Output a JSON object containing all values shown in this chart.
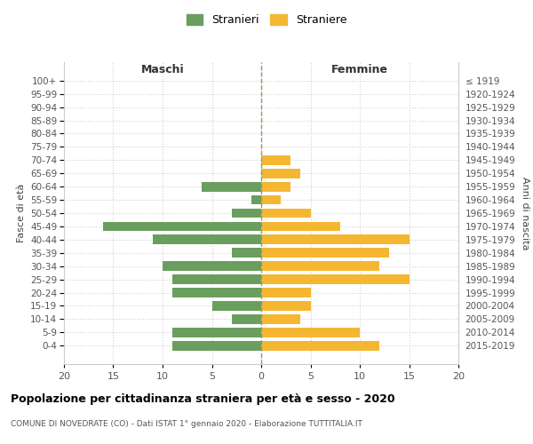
{
  "age_groups": [
    "100+",
    "95-99",
    "90-94",
    "85-89",
    "80-84",
    "75-79",
    "70-74",
    "65-69",
    "60-64",
    "55-59",
    "50-54",
    "45-49",
    "40-44",
    "35-39",
    "30-34",
    "25-29",
    "20-24",
    "15-19",
    "10-14",
    "5-9",
    "0-4"
  ],
  "birth_years": [
    "≤ 1919",
    "1920-1924",
    "1925-1929",
    "1930-1934",
    "1935-1939",
    "1940-1944",
    "1945-1949",
    "1950-1954",
    "1955-1959",
    "1960-1964",
    "1965-1969",
    "1970-1974",
    "1975-1979",
    "1980-1984",
    "1985-1989",
    "1990-1994",
    "1995-1999",
    "2000-2004",
    "2005-2009",
    "2010-2014",
    "2015-2019"
  ],
  "maschi": [
    0,
    0,
    0,
    0,
    0,
    0,
    0,
    0,
    6,
    1,
    3,
    16,
    11,
    3,
    10,
    9,
    9,
    5,
    3,
    9,
    9
  ],
  "femmine": [
    0,
    0,
    0,
    0,
    0,
    0,
    3,
    4,
    3,
    2,
    5,
    8,
    15,
    13,
    12,
    15,
    5,
    5,
    4,
    10,
    12
  ],
  "color_maschi": "#6a9e5e",
  "color_femmine": "#f5b731",
  "title": "Popolazione per cittadinanza straniera per età e sesso - 2020",
  "subtitle": "COMUNE DI NOVEDRATE (CO) - Dati ISTAT 1° gennaio 2020 - Elaborazione TUTTITALIA.IT",
  "xlabel_left": "Maschi",
  "xlabel_right": "Femmine",
  "ylabel_left": "Fasce di età",
  "ylabel_right": "Anni di nascita",
  "legend_maschi": "Stranieri",
  "legend_femmine": "Straniere",
  "xlim": 20,
  "background_color": "#ffffff",
  "grid_color": "#d0d0d0"
}
